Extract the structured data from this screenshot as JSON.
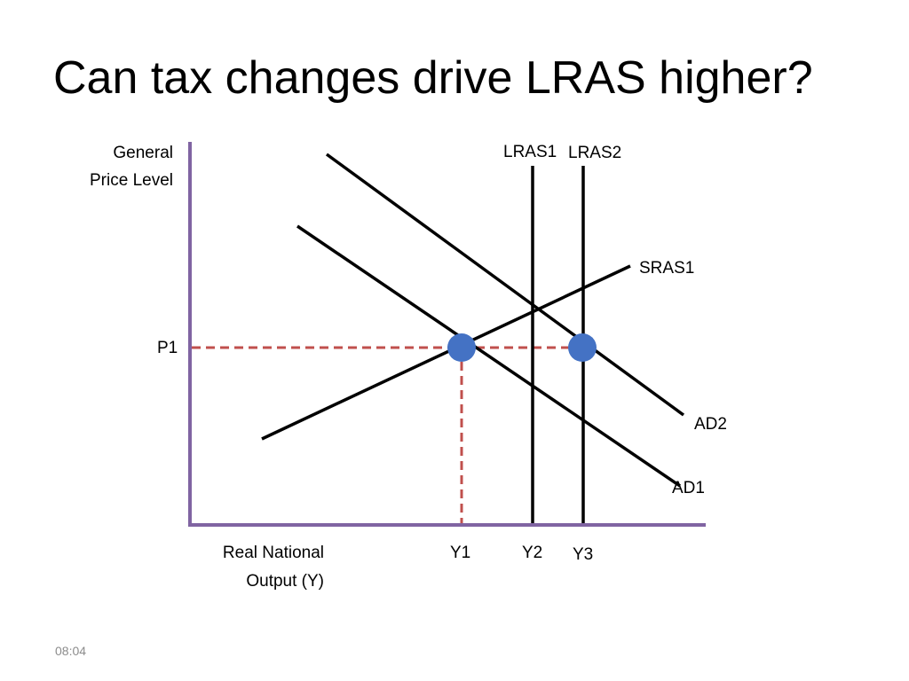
{
  "slide": {
    "title": "Can tax changes drive LRAS higher?",
    "footer_time": "08:04"
  },
  "diagram": {
    "y_axis_label": [
      "General",
      "Price Level"
    ],
    "x_axis_label": [
      "Real National",
      "Output (Y)"
    ],
    "curves": {
      "lras1": "LRAS1",
      "lras2": "LRAS2",
      "sras1": "SRAS1",
      "ad1": "AD1",
      "ad2": "AD2"
    },
    "price_levels": {
      "p1": "P1"
    },
    "outputs": {
      "y1": "Y1",
      "y2": "Y2",
      "y3": "Y3"
    },
    "colors": {
      "axis": "#8064a2",
      "curve": "#000000",
      "guide": "#c0504d",
      "equilibrium_point": "#4472c4"
    }
  }
}
